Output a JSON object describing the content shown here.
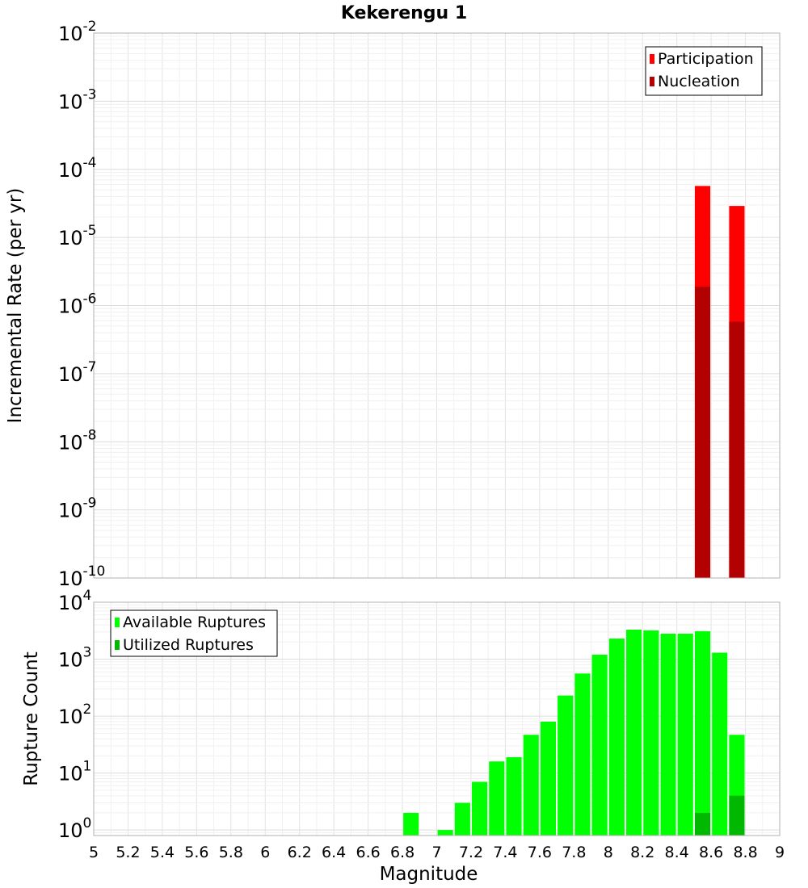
{
  "title": "Kekerengu 1",
  "chart_data": [
    {
      "type": "bar",
      "title": "Kekerengu 1",
      "xlabel": "",
      "ylabel": "Incremental Rate (per yr)",
      "yscale": "log",
      "xlim": [
        5,
        9
      ],
      "ylim": [
        1e-10,
        0.01
      ],
      "y_ticks": [
        {
          "base": "10",
          "exp": "-2"
        },
        {
          "base": "10",
          "exp": "-3"
        },
        {
          "base": "10",
          "exp": "-4"
        },
        {
          "base": "10",
          "exp": "-5"
        },
        {
          "base": "10",
          "exp": "-6"
        },
        {
          "base": "10",
          "exp": "-7"
        },
        {
          "base": "10",
          "exp": "-8"
        },
        {
          "base": "10",
          "exp": "-9"
        },
        {
          "base": "10",
          "exp": "-10"
        }
      ],
      "legend_position": "top-right",
      "grid": true,
      "series": [
        {
          "name": "Participation",
          "color": "#ff0000",
          "points": [
            {
              "x": 8.55,
              "y": 5.7e-05
            },
            {
              "x": 8.75,
              "y": 2.9e-05
            }
          ]
        },
        {
          "name": "Nucleation",
          "color": "#b30000",
          "points": [
            {
              "x": 8.55,
              "y": 1.9e-06
            },
            {
              "x": 8.75,
              "y": 5.8e-07
            }
          ]
        }
      ]
    },
    {
      "type": "bar",
      "xlabel": "Magnitude",
      "ylabel": "Rupture Count",
      "yscale": "log",
      "xlim": [
        5,
        9
      ],
      "ylim": [
        0.8,
        10000
      ],
      "x_ticks": [
        "5",
        "5.2",
        "5.4",
        "5.6",
        "5.8",
        "6",
        "6.2",
        "6.4",
        "6.6",
        "6.8",
        "7",
        "7.2",
        "7.4",
        "7.6",
        "7.8",
        "8",
        "8.2",
        "8.4",
        "8.6",
        "8.8",
        "9"
      ],
      "y_ticks": [
        {
          "base": "10",
          "exp": "4"
        },
        {
          "base": "10",
          "exp": "3"
        },
        {
          "base": "10",
          "exp": "2"
        },
        {
          "base": "10",
          "exp": "1"
        },
        {
          "base": "10",
          "exp": "0"
        }
      ],
      "legend_position": "top-left",
      "grid": true,
      "series": [
        {
          "name": "Available Ruptures",
          "color": "#00ff00",
          "points": [
            {
              "x": 6.85,
              "y": 2
            },
            {
              "x": 7.05,
              "y": 1
            },
            {
              "x": 7.15,
              "y": 3
            },
            {
              "x": 7.25,
              "y": 7
            },
            {
              "x": 7.35,
              "y": 16
            },
            {
              "x": 7.45,
              "y": 19
            },
            {
              "x": 7.55,
              "y": 47
            },
            {
              "x": 7.65,
              "y": 80
            },
            {
              "x": 7.75,
              "y": 230
            },
            {
              "x": 7.85,
              "y": 560
            },
            {
              "x": 7.95,
              "y": 1200
            },
            {
              "x": 8.05,
              "y": 2300
            },
            {
              "x": 8.15,
              "y": 3300
            },
            {
              "x": 8.25,
              "y": 3200
            },
            {
              "x": 8.35,
              "y": 2800
            },
            {
              "x": 8.45,
              "y": 2800
            },
            {
              "x": 8.55,
              "y": 3100
            },
            {
              "x": 8.65,
              "y": 1300
            },
            {
              "x": 8.75,
              "y": 47
            }
          ]
        },
        {
          "name": "Utilized Ruptures",
          "color": "#00b800",
          "points": [
            {
              "x": 8.55,
              "y": 2
            },
            {
              "x": 8.75,
              "y": 4
            }
          ]
        }
      ]
    }
  ]
}
